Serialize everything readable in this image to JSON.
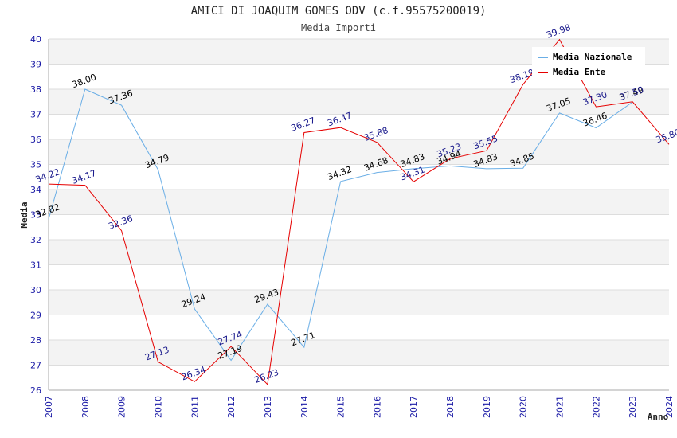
{
  "chart_data": {
    "type": "line",
    "title": "AMICI DI JOAQUIM GOMES ODV (c.f.95575200019)",
    "subtitle": "Media Importi",
    "xlabel": "Anno",
    "ylabel": "Media",
    "xlim": [
      2007,
      2024
    ],
    "ylim": [
      26,
      40
    ],
    "x_ticks": [
      "2007",
      "2008",
      "2009",
      "2010",
      "2011",
      "2012",
      "2013",
      "2014",
      "2015",
      "2016",
      "2017",
      "2018",
      "2019",
      "2020",
      "2021",
      "2022",
      "2023",
      "2024"
    ],
    "y_ticks": [
      "26",
      "27",
      "28",
      "29",
      "30",
      "31",
      "32",
      "33",
      "34",
      "35",
      "36",
      "37",
      "38",
      "39",
      "40"
    ],
    "grid": true,
    "legend_position": "top-right",
    "series": [
      {
        "name": "Media Nazionale",
        "color": "#6aaee6",
        "label_color": "#000000",
        "x": [
          2007,
          2008,
          2009,
          2010,
          2011,
          2012,
          2013,
          2014,
          2015,
          2016,
          2017,
          2018,
          2019,
          2020,
          2021,
          2022,
          2023
        ],
        "y": [
          32.82,
          38.0,
          37.36,
          34.79,
          29.24,
          27.19,
          29.43,
          27.71,
          34.32,
          34.68,
          34.83,
          34.94,
          34.83,
          34.85,
          37.05,
          36.46,
          37.49
        ],
        "labels": [
          "32.82",
          "38.00",
          "37.36",
          "34.79",
          "29.24",
          "27.19",
          "29.43",
          "27.71",
          "34.32",
          "34.68",
          "34.83",
          "34.94",
          "34.83",
          "34.85",
          "37.05",
          "36.46",
          "37.49"
        ]
      },
      {
        "name": "Media Ente",
        "color": "#e60000",
        "label_color": "#1a1a8c",
        "x": [
          2007,
          2008,
          2009,
          2010,
          2011,
          2012,
          2013,
          2014,
          2015,
          2016,
          2017,
          2018,
          2019,
          2020,
          2021,
          2022,
          2023,
          2024
        ],
        "y": [
          34.22,
          34.17,
          32.36,
          27.13,
          26.34,
          27.74,
          26.23,
          36.27,
          36.47,
          35.88,
          34.31,
          35.23,
          35.55,
          38.19,
          39.98,
          37.3,
          37.5,
          35.8
        ],
        "labels": [
          "34.22",
          "34.17",
          "32.36",
          "27.13",
          "26.34",
          "27.74",
          "26.23",
          "36.27",
          "36.47",
          "35.88",
          "34.31",
          "35.23",
          "35.55",
          "38.19",
          "39.98",
          "37.30",
          "37.50",
          "35.80"
        ]
      }
    ]
  }
}
